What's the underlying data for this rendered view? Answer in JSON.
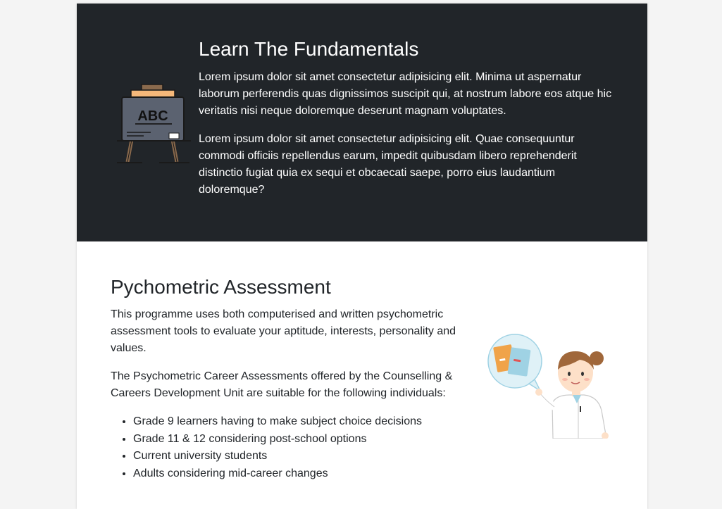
{
  "fundamentals": {
    "title": "Learn The Fundamentals",
    "paragraph_1": "Lorem ipsum dolor sit amet consectetur adipisicing elit. Minima ut aspernatur laborum perferendis quas dignissimos suscipit qui, at nostrum labore eos atque hic veritatis nisi neque doloremque deserunt magnam voluptates.",
    "paragraph_2": "Lorem ipsum dolor sit amet consectetur adipisicing elit. Quae consequuntur commodi officiis repellendus earum, impedit quibusdam libero reprehenderit distinctio fugiat quia ex sequi et obcaecati saepe, porro eius laudantium doloremque?",
    "illustration": {
      "icon": "chalkboard-easel-icon",
      "board_text": "ABC",
      "colors": {
        "background": "#212529",
        "board": "#5b6270",
        "board_top": "#f5b87a",
        "legs": "#8a6a4d",
        "outline": "#1a1a1a"
      }
    }
  },
  "assessment": {
    "title": "Pychometric Assessment",
    "paragraph_1": "This programme uses both computerised and written psychometric assessment tools to evaluate your aptitude, interests, personality and values.",
    "paragraph_2": "The Psychometric Career Assessments offered by the Counselling & Careers Development Unit are suitable for the following individuals:",
    "list_items": [
      "Grade 9 learners having to make subject choice decisions",
      "Grade 11 & 12 considering post-school options",
      "Current university students",
      "Adults considering mid-career changes"
    ],
    "illustration": {
      "icon": "doctor-with-books-icon",
      "colors": {
        "hair": "#a0673a",
        "skin": "#fde0c8",
        "coat": "#ffffff",
        "bubble": "#dff1f7",
        "book_orange": "#f0a349",
        "book_blue": "#9fd2e4"
      }
    }
  }
}
